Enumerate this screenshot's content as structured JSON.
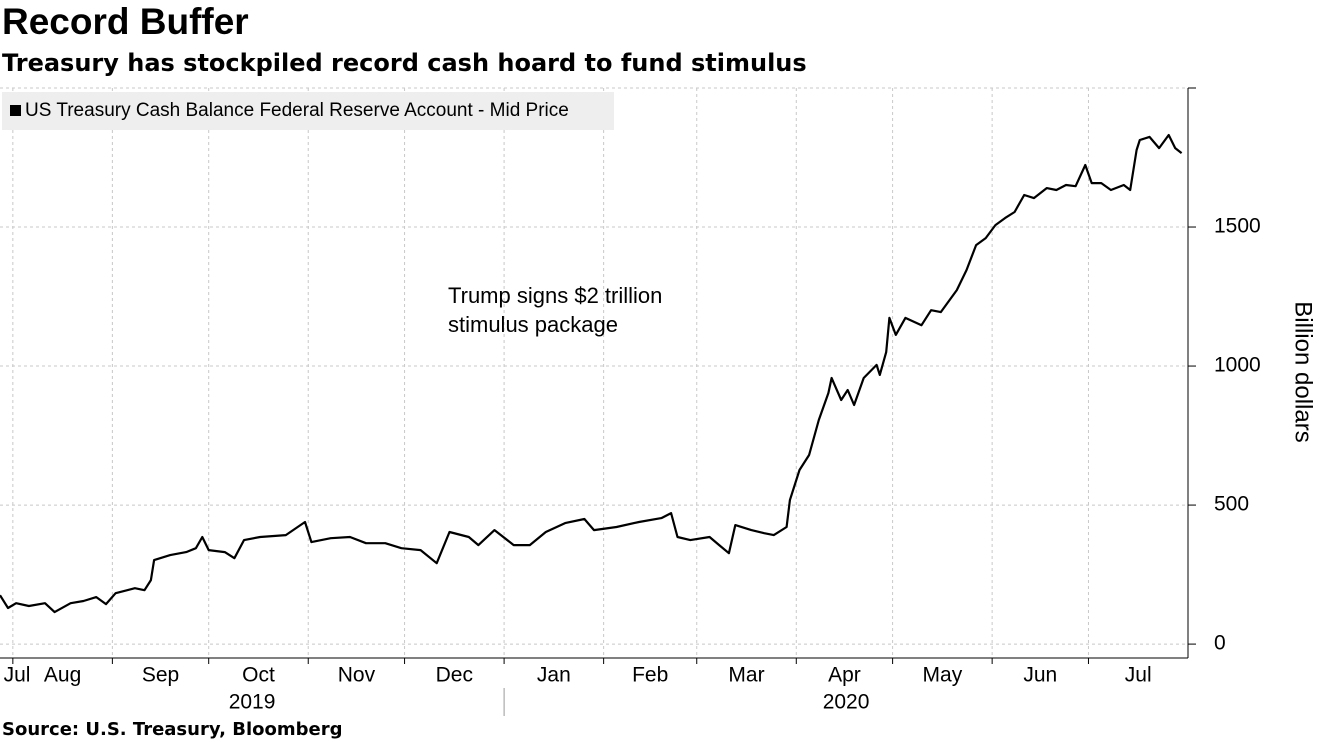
{
  "chart_data": {
    "type": "line",
    "title": "Record Buffer",
    "subtitle": "Treasury has stockpiled record cash hoard to fund stimulus",
    "y_label": "Billion dollars",
    "source": "Source: U.S. Treasury, Bloomberg",
    "annotation": [
      "Trump signs $2 trillion",
      "stimulus package"
    ],
    "grid": true,
    "legend": "top-left",
    "xlim": [
      0,
      370
    ],
    "xticks": [
      {
        "value": -27,
        "label": "Jul"
      },
      {
        "value": 4,
        "label": "Aug"
      },
      {
        "value": 35,
        "label": "Sep"
      },
      {
        "value": 65,
        "label": "Oct"
      },
      {
        "value": 96,
        "label": "Nov"
      },
      {
        "value": 126,
        "label": "Dec"
      },
      {
        "value": 157,
        "label": "Jan"
      },
      {
        "value": 188,
        "label": "Feb"
      },
      {
        "value": 217,
        "label": "Mar"
      },
      {
        "value": 248,
        "label": "Apr"
      },
      {
        "value": 278,
        "label": "May"
      },
      {
        "value": 309,
        "label": "Jun"
      },
      {
        "value": 339,
        "label": "Jul"
      }
    ],
    "years": [
      {
        "label": "2019",
        "start": -27,
        "end": 157
      },
      {
        "label": "2020",
        "start": 157,
        "end": 370
      }
    ],
    "ylim": [
      -50,
      2000
    ],
    "yticks": [
      0,
      500,
      1000,
      1500
    ],
    "x": [
      0,
      2.5,
      5,
      9,
      14,
      17,
      22,
      26,
      30,
      33,
      36,
      42,
      45,
      47,
      48,
      53,
      58,
      61,
      63,
      65,
      70,
      73,
      76,
      81,
      89,
      95,
      97,
      103,
      109,
      114,
      120,
      125,
      131,
      136,
      140,
      146,
      149,
      154,
      160,
      165,
      170,
      176,
      182,
      185,
      192,
      199,
      206,
      209,
      211,
      215,
      221,
      224,
      227,
      229,
      234,
      238,
      241,
      245,
      246,
      249,
      252,
      255,
      258,
      259,
      262,
      264,
      266,
      269,
      273,
      274,
      276,
      277,
      279,
      282,
      287,
      290,
      293,
      298,
      301,
      304,
      307,
      310,
      313,
      316,
      319,
      322,
      326,
      329,
      332,
      335,
      338,
      340,
      343,
      346,
      350,
      352,
      354,
      355,
      358,
      361,
      364,
      366,
      368
    ],
    "series": [
      {
        "name": "US Treasury Cash Balance Federal Reserve Account - Mid Price",
        "color": "#000000",
        "values": [
          176,
          130,
          147,
          137,
          147,
          115,
          147,
          155,
          169,
          144,
          183,
          201,
          194,
          230,
          302,
          320,
          331,
          345,
          385,
          338,
          331,
          309,
          374,
          385,
          392,
          439,
          367,
          381,
          385,
          363,
          363,
          345,
          338,
          291,
          403,
          385,
          356,
          410,
          356,
          356,
          403,
          435,
          450,
          410,
          421,
          439,
          453,
          471,
          385,
          374,
          385,
          356,
          327,
          428,
          410,
          399,
          392,
          421,
          518,
          626,
          680,
          806,
          903,
          957,
          878,
          914,
          860,
          957,
          1004,
          968,
          1050,
          1173,
          1112,
          1173,
          1147,
          1201,
          1194,
          1273,
          1345,
          1435,
          1460,
          1507,
          1532,
          1554,
          1615,
          1604,
          1640,
          1633,
          1651,
          1647,
          1723,
          1658,
          1658,
          1633,
          1651,
          1633,
          1777,
          1813,
          1824,
          1784,
          1831,
          1784,
          1766
        ]
      }
    ]
  }
}
